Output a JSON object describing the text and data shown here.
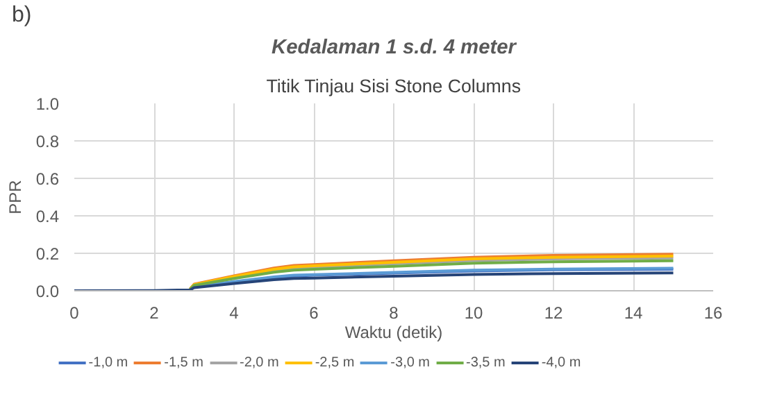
{
  "chart_data": {
    "type": "line",
    "title": "Kedalaman 1 s.d. 4 meter",
    "subtitle": "Titik Tinjau Sisi Stone Columns",
    "annotations": [
      "b)"
    ],
    "xlabel": "Waktu (detik)",
    "ylabel": "PPR",
    "x": [
      2.9,
      3,
      4,
      5,
      5.5,
      6,
      8,
      10,
      12,
      15
    ],
    "series": [
      {
        "name": "-1,0 m",
        "color": "#4472c4",
        "values": [
          0.006,
          0.021,
          0.047,
          0.071,
          0.079,
          0.083,
          0.094,
          0.106,
          0.112,
          0.115
        ]
      },
      {
        "name": "-1,5 m",
        "color": "#ed7d31",
        "values": [
          0.01,
          0.035,
          0.08,
          0.121,
          0.135,
          0.14,
          0.16,
          0.179,
          0.189,
          0.195
        ]
      },
      {
        "name": "-2,0 m",
        "color": "#a5a5a5",
        "values": [
          0.009,
          0.032,
          0.072,
          0.109,
          0.121,
          0.126,
          0.144,
          0.161,
          0.17,
          0.175
        ]
      },
      {
        "name": "-2,5 m",
        "color": "#ffc000",
        "values": [
          0.009,
          0.033,
          0.076,
          0.115,
          0.128,
          0.133,
          0.152,
          0.17,
          0.179,
          0.185
        ]
      },
      {
        "name": "-3,0 m",
        "color": "#5b9bd5",
        "values": [
          0.006,
          0.022,
          0.049,
          0.074,
          0.083,
          0.086,
          0.098,
          0.11,
          0.116,
          0.12
        ]
      },
      {
        "name": "-3,5 m",
        "color": "#70ad47",
        "values": [
          0.008,
          0.029,
          0.066,
          0.099,
          0.11,
          0.115,
          0.131,
          0.147,
          0.155,
          0.16
        ]
      },
      {
        "name": "-4,0 m",
        "color": "#264478",
        "x": [
          0,
          2,
          2.9,
          3,
          4,
          5,
          5.5,
          6,
          8,
          10,
          12,
          15
        ],
        "values": [
          0,
          0.001,
          0.005,
          0.017,
          0.039,
          0.059,
          0.066,
          0.068,
          0.078,
          0.087,
          0.092,
          0.095
        ]
      }
    ],
    "xlim": [
      0,
      16
    ],
    "xticks": [
      0,
      2,
      4,
      6,
      8,
      10,
      12,
      14,
      16
    ],
    "ylim": [
      0,
      1
    ],
    "yticks": [
      {
        "value": 0,
        "label": "0.0"
      },
      0.2,
      0.4,
      0.6,
      0.8,
      {
        "value": 1,
        "label": "1.0"
      }
    ],
    "grid": true,
    "legend": "bottom",
    "marker": "none",
    "line_style": "solid"
  }
}
